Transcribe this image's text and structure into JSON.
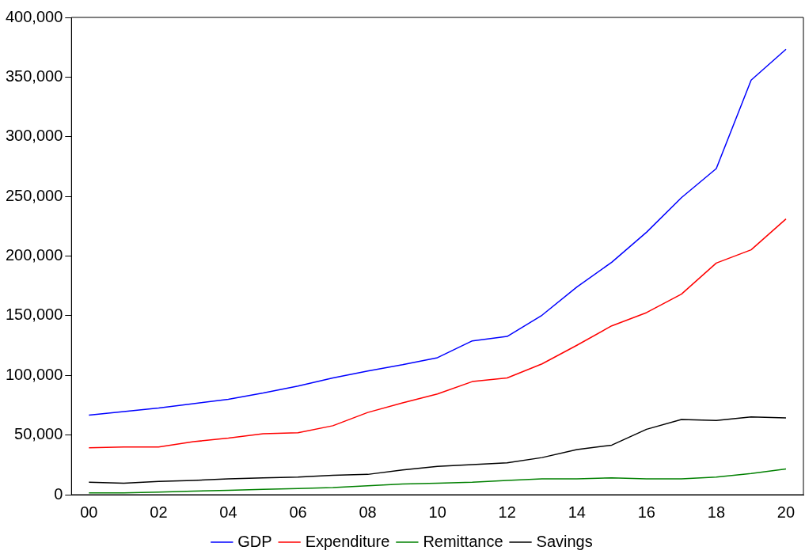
{
  "chart_data": {
    "type": "line",
    "categories": [
      "00",
      null,
      "02",
      null,
      "04",
      null,
      "06",
      null,
      "08",
      null,
      "10",
      null,
      "12",
      null,
      "14",
      null,
      "16",
      null,
      "18",
      null,
      "20"
    ],
    "ylim": [
      0,
      400000
    ],
    "yticks": [
      {
        "value": 0,
        "label": "0"
      },
      {
        "value": 50000,
        "label": "50,000"
      },
      {
        "value": 100000,
        "label": "100,000"
      },
      {
        "value": 150000,
        "label": "150,000"
      },
      {
        "value": 200000,
        "label": "200,000"
      },
      {
        "value": 250000,
        "label": "250,000"
      },
      {
        "value": 300000,
        "label": "300,000"
      },
      {
        "value": 350000,
        "label": "350,000"
      },
      {
        "value": 400000,
        "label": "400,000"
      }
    ],
    "series": [
      {
        "name": "GDP",
        "color": "#0000ff",
        "values": [
          66700,
          69600,
          72600,
          76300,
          80000,
          85200,
          91100,
          97800,
          103700,
          108900,
          114800,
          128900,
          132600,
          150400,
          174100,
          194800,
          220000,
          248900,
          273300,
          347400,
          373300
        ]
      },
      {
        "name": "Expenditure",
        "color": "#ff0000",
        "values": [
          39300,
          40000,
          40000,
          44400,
          47400,
          51100,
          51900,
          57800,
          68900,
          77000,
          84400,
          94800,
          97800,
          109600,
          125200,
          141500,
          152600,
          168100,
          194100,
          205200,
          231100
        ]
      },
      {
        "name": "Remittance",
        "color": "#008000",
        "values": [
          1500,
          1500,
          2200,
          3000,
          3700,
          4400,
          5200,
          5900,
          7400,
          8900,
          9600,
          10400,
          11900,
          13300,
          13300,
          14100,
          13300,
          13300,
          14800,
          17800,
          21500
        ]
      },
      {
        "name": "Savings",
        "color": "#000000",
        "values": [
          10400,
          9600,
          11100,
          11900,
          13300,
          14100,
          14800,
          16300,
          17000,
          20700,
          23700,
          25200,
          26700,
          31100,
          37800,
          41500,
          54800,
          63000,
          62200,
          65200,
          64400
        ]
      }
    ],
    "grid": false,
    "legend": "bottom",
    "marker": "none",
    "line_style": "solid"
  }
}
